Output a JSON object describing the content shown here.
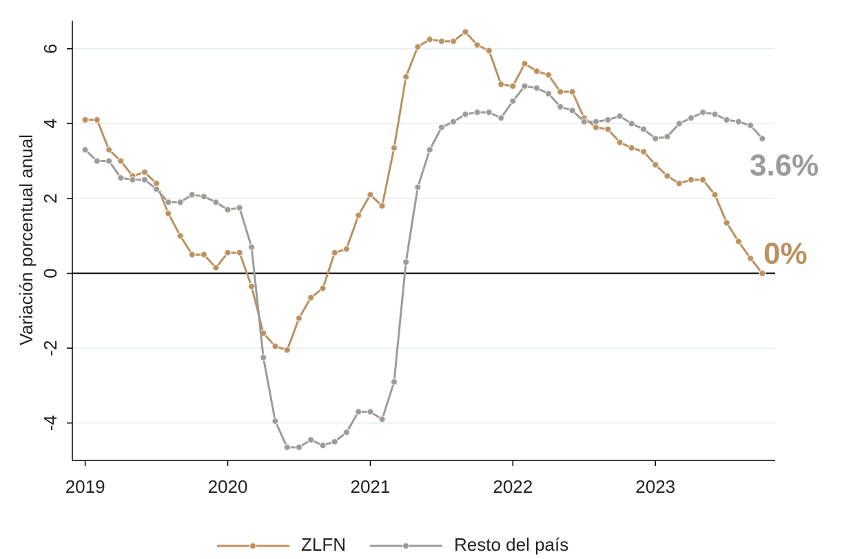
{
  "chart_data": {
    "type": "line",
    "y_label": "Variación porcentual anual",
    "x": [
      2019.0,
      2019.083,
      2019.167,
      2019.25,
      2019.333,
      2019.417,
      2019.5,
      2019.583,
      2019.667,
      2019.75,
      2019.833,
      2019.917,
      2020.0,
      2020.083,
      2020.167,
      2020.25,
      2020.333,
      2020.417,
      2020.5,
      2020.583,
      2020.667,
      2020.75,
      2020.833,
      2020.917,
      2021.0,
      2021.083,
      2021.167,
      2021.25,
      2021.333,
      2021.417,
      2021.5,
      2021.583,
      2021.667,
      2021.75,
      2021.833,
      2021.917,
      2022.0,
      2022.083,
      2022.167,
      2022.25,
      2022.333,
      2022.417,
      2022.5,
      2022.583,
      2022.667,
      2022.75,
      2022.833,
      2022.917,
      2023.0,
      2023.083,
      2023.167,
      2023.25,
      2023.333,
      2023.417,
      2023.5,
      2023.583,
      2023.667,
      2023.75
    ],
    "series": [
      {
        "name": "ZLFN",
        "color": "#bb915f",
        "values": [
          4.1,
          4.1,
          3.3,
          3.0,
          2.6,
          2.7,
          2.4,
          1.6,
          1.0,
          0.5,
          0.5,
          0.15,
          0.55,
          0.55,
          -0.35,
          -1.6,
          -1.95,
          -2.05,
          -1.2,
          -0.65,
          -0.4,
          0.55,
          0.65,
          1.55,
          2.1,
          1.8,
          3.35,
          5.25,
          6.05,
          6.25,
          6.2,
          6.2,
          6.45,
          6.1,
          5.95,
          5.05,
          5.0,
          5.6,
          5.4,
          5.3,
          4.85,
          4.85,
          4.15,
          3.9,
          3.85,
          3.5,
          3.35,
          3.25,
          2.9,
          2.6,
          2.4,
          2.5,
          2.5,
          2.1,
          1.35,
          0.85,
          0.4,
          0.0
        ]
      },
      {
        "name": "Resto del país",
        "color": "#9b9b9b",
        "values": [
          3.3,
          3.0,
          3.0,
          2.55,
          2.5,
          2.5,
          2.25,
          1.9,
          1.9,
          2.1,
          2.05,
          1.9,
          1.7,
          1.75,
          0.7,
          -2.25,
          -3.95,
          -4.65,
          -4.65,
          -4.45,
          -4.6,
          -4.5,
          -4.25,
          -3.7,
          -3.7,
          -3.9,
          -2.9,
          0.3,
          2.3,
          3.3,
          3.9,
          4.05,
          4.25,
          4.3,
          4.3,
          4.15,
          4.6,
          5.0,
          4.95,
          4.8,
          4.45,
          4.35,
          4.05,
          4.05,
          4.1,
          4.2,
          4.0,
          3.85,
          3.6,
          3.65,
          4.0,
          4.15,
          4.3,
          4.25,
          4.1,
          4.05,
          3.95,
          3.6
        ]
      }
    ],
    "xlim": [
      2018.91,
      2023.84
    ],
    "xticks": [
      2019,
      2020,
      2021,
      2022,
      2023
    ],
    "ylim": [
      -5,
      6.75
    ],
    "yticks": [
      -4,
      -2,
      0,
      2,
      4,
      6
    ],
    "grid": true,
    "legend": "bottom",
    "annotations": [
      {
        "text": "3.6%",
        "color": "#9b9b9b"
      },
      {
        "text": "0%",
        "color": "#bb915f"
      }
    ]
  }
}
